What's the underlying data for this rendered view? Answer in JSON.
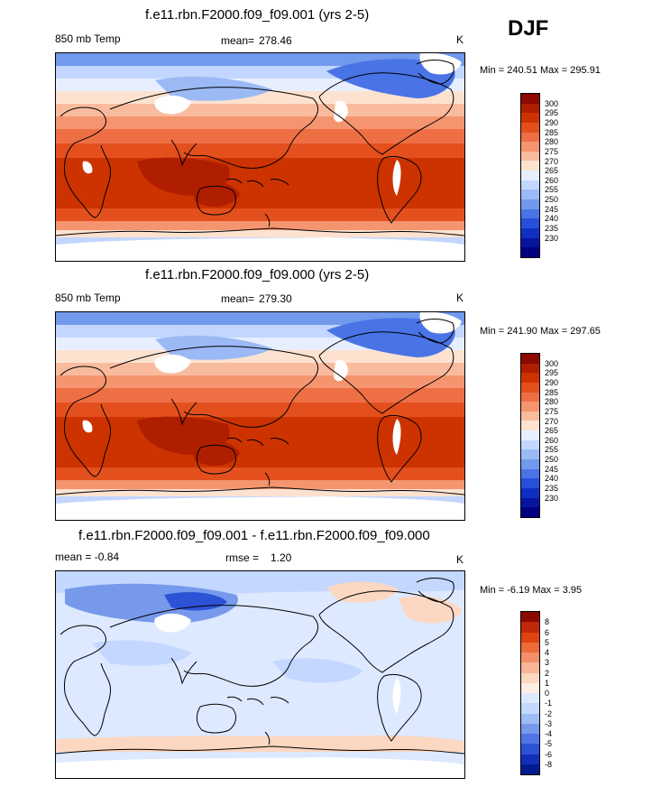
{
  "season": "DJF",
  "panels": [
    {
      "title": "f.e11.rbn.F2000.f09_f09.001 (yrs 2-5)",
      "left_label": "850 mb Temp",
      "stat_label": "mean=",
      "stat_value": "278.46",
      "units": "K",
      "range_text": "Min = 240.51 Max = 295.91",
      "kind": "abs"
    },
    {
      "title": "f.e11.rbn.F2000.f09_f09.000 (yrs 2-5)",
      "left_label": "850 mb Temp",
      "stat_label": "mean=",
      "stat_value": "279.30",
      "units": "K",
      "range_text": "Min = 241.90 Max = 297.65",
      "kind": "abs"
    },
    {
      "title": "f.e11.rbn.F2000.f09_f09.001 - f.e11.rbn.F2000.f09_f09.000",
      "left_label": "mean =  -0.84",
      "stat_label": "rmse =",
      "stat_value": "1.20",
      "units": "K",
      "range_text": "Min =  -6.19 Max =   3.95",
      "kind": "diff"
    }
  ],
  "chart_data": [
    {
      "type": "heatmap",
      "title": "f.e11.rbn.F2000.f09_f09.001 (yrs 2-5)",
      "variable": "850 mb Temp",
      "units": "K",
      "mean": 278.46,
      "min": 240.51,
      "max": 295.91,
      "colorbar_levels": [
        300,
        295,
        290,
        285,
        280,
        275,
        270,
        265,
        260,
        255,
        250,
        245,
        240,
        235,
        230
      ]
    },
    {
      "type": "heatmap",
      "title": "f.e11.rbn.F2000.f09_f09.000 (yrs 2-5)",
      "variable": "850 mb Temp",
      "units": "K",
      "mean": 279.3,
      "min": 241.9,
      "max": 297.65,
      "colorbar_levels": [
        300,
        295,
        290,
        285,
        280,
        275,
        270,
        265,
        260,
        255,
        250,
        245,
        240,
        235,
        230
      ]
    },
    {
      "type": "heatmap",
      "title": "f.e11.rbn.F2000.f09_f09.001 - f.e11.rbn.F2000.f09_f09.000",
      "units": "K",
      "mean": -0.84,
      "rmse": 1.2,
      "min": -6.19,
      "max": 3.95,
      "colorbar_levels": [
        8,
        6,
        5,
        4,
        3,
        2,
        1,
        0,
        -1,
        -2,
        -3,
        -4,
        -5,
        -6,
        -8
      ]
    }
  ],
  "colors": {
    "abs_scale": [
      "#8c0a00",
      "#b01e00",
      "#cc3300",
      "#e3501e",
      "#ef6f45",
      "#f5956f",
      "#f9bb9e",
      "#fde2d0",
      "#e7efff",
      "#c2d6ff",
      "#9bbaf5",
      "#7199ec",
      "#4a74e6",
      "#2650da",
      "#0f2fc2",
      "#06149e",
      "#000080"
    ],
    "diff_scale": [
      "#8c0a00",
      "#c0280a",
      "#dd4410",
      "#ee6a3a",
      "#f38f68",
      "#f8b597",
      "#fcd7c2",
      "#feeee4",
      "#dde9ff",
      "#c3d7ff",
      "#9ebcf5",
      "#7799ec",
      "#4f76e4",
      "#2c52d6",
      "#122fb8",
      "#001a8f"
    ],
    "missing": "#ffffff",
    "coastline": "#000000"
  }
}
